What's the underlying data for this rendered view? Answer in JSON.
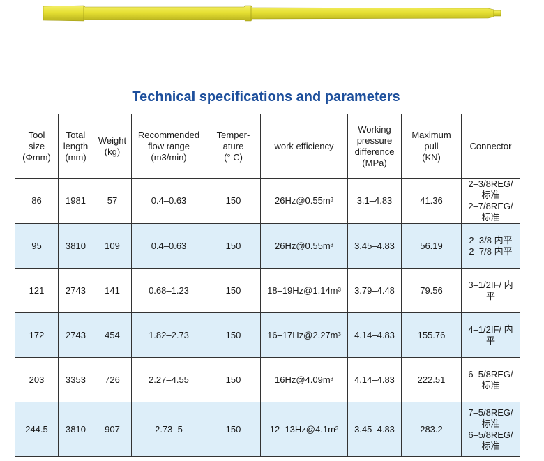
{
  "title": "Technical specifications and parameters",
  "tool_image": {
    "body_color": "#e6e033",
    "edge_color": "#b8b21e"
  },
  "table": {
    "headers": [
      [
        "Tool",
        "size",
        "(Φmm)"
      ],
      [
        "Total",
        "length",
        "(mm)"
      ],
      [
        "Weight",
        "(kg)"
      ],
      [
        "Recommended",
        "flow range",
        "(m3/min)"
      ],
      [
        "Temper-",
        "ature",
        "(°  C)"
      ],
      [
        "work efficiency"
      ],
      [
        "Working",
        "pressure",
        "difference",
        "(MPa)"
      ],
      [
        "Maximum",
        "pull",
        "(KN)"
      ],
      [
        "Connector"
      ]
    ],
    "rows": [
      {
        "size": "86",
        "length": "1981",
        "weight": "57",
        "flow": "0.4–0.63",
        "temp": "150",
        "efficiency": "26Hz@0.55m³",
        "pressure": "3.1–4.83",
        "pull": "41.36",
        "connector": [
          "2–3/8REG/",
          "标准",
          "2–7/8REG/",
          "标准"
        ]
      },
      {
        "size": "95",
        "length": "3810",
        "weight": "109",
        "flow": "0.4–0.63",
        "temp": "150",
        "efficiency": "26Hz@0.55m³",
        "pressure": "3.45–4.83",
        "pull": "56.19",
        "connector": [
          "2–3/8 内平",
          "2–7/8 内平"
        ]
      },
      {
        "size": "121",
        "length": "2743",
        "weight": "141",
        "flow": "0.68–1.23",
        "temp": "150",
        "efficiency": "18–19Hz@1.14m³",
        "pressure": "3.79–4.48",
        "pull": "79.56",
        "connector": [
          "3–1/2IF/ 内",
          "平"
        ]
      },
      {
        "size": "172",
        "length": "2743",
        "weight": "454",
        "flow": "1.82–2.73",
        "temp": "150",
        "efficiency": "16–17Hz@2.27m³",
        "pressure": "4.14–4.83",
        "pull": "155.76",
        "connector": [
          "4–1/2IF/ 内",
          "平"
        ]
      },
      {
        "size": "203",
        "length": "3353",
        "weight": "726",
        "flow": "2.27–4.55",
        "temp": "150",
        "efficiency": "16Hz@4.09m³",
        "pressure": "4.14–4.83",
        "pull": "222.51",
        "connector": [
          "6–5/8REG/",
          "标准"
        ]
      },
      {
        "size": "244.5",
        "length": "3810",
        "weight": "907",
        "flow": "2.73–5",
        "temp": "150",
        "efficiency": "12–13Hz@4.1m³",
        "pressure": "3.45–4.83",
        "pull": "283.2",
        "connector": [
          "7–5/8REG/",
          "标准",
          "6–5/8REG/",
          "标准"
        ]
      }
    ]
  }
}
